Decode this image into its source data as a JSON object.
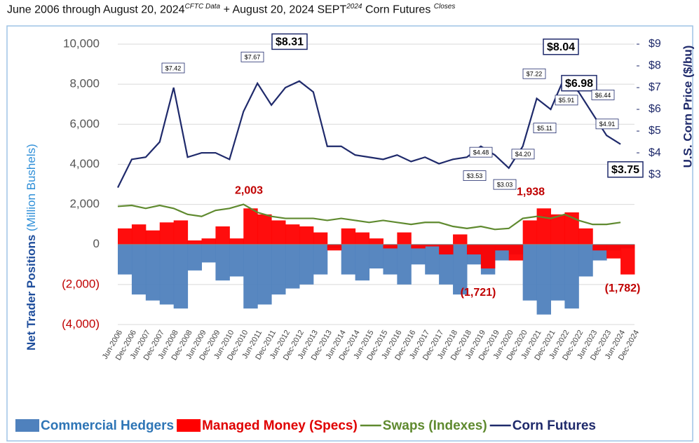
{
  "chart_data": {
    "type": "combo",
    "title_parts": [
      "June 2006 through August 20, 2024",
      "CFTC Data",
      "+ August 20, 2024 SEPT",
      "2024",
      "Corn Futures",
      "Closes"
    ],
    "y_label": "Net Trader Positions",
    "y_label_unit": "(Million Bushels)",
    "y2_label": "U.S. Corn Price ($/bu)",
    "categories": [
      "Jun-2006",
      "Dec-2006",
      "Jun-2007",
      "Dec-2007",
      "Jun-2008",
      "Dec-2008",
      "Jun-2009",
      "Dec-2009",
      "Jun-2010",
      "Dec-2010",
      "Jun-2011",
      "Dec-2011",
      "Jun-2012",
      "Dec-2012",
      "Jun-2013",
      "Dec-2013",
      "Jun-2014",
      "Dec-2014",
      "Jun-2015",
      "Dec-2015",
      "Jun-2016",
      "Dec-2016",
      "Jun-2017",
      "Dec-2017",
      "Jun-2018",
      "Dec-2018",
      "Jun-2019",
      "Dec-2019",
      "Jun-2020",
      "Dec-2020",
      "Jun-2021",
      "Dec-2021",
      "Jun-2022",
      "Dec-2022",
      "Jun-2023",
      "Dec-2023",
      "Jun-2024",
      "Dec-2024"
    ],
    "ylim": [
      -4000,
      10000
    ],
    "yticks": [
      {
        "value": 10000,
        "label": "10,000"
      },
      {
        "value": 8000,
        "label": "8,000"
      },
      {
        "value": 6000,
        "label": "6,000"
      },
      {
        "value": 4000,
        "label": "4,000"
      },
      {
        "value": 2000,
        "label": "2,000"
      },
      0,
      {
        "value": -2000,
        "label": "(2,000)"
      },
      {
        "value": -4000,
        "label": "(4,000)"
      }
    ],
    "y2lim": [
      -3.9,
      9
    ],
    "y2ticks": [
      {
        "value": 9,
        "label": "$9"
      },
      {
        "value": 8,
        "label": "$8"
      },
      {
        "value": 7,
        "label": "$7"
      },
      {
        "value": 6,
        "label": "$6"
      },
      {
        "value": 5,
        "label": "$5"
      },
      {
        "value": 4,
        "label": "$4"
      },
      {
        "value": 3,
        "label": "$3"
      }
    ],
    "grid": true,
    "series": [
      {
        "name": "Commercial Hedgers",
        "kind": "bar",
        "color": "#4f81bd",
        "values": [
          -1500,
          -2500,
          -2800,
          -3000,
          -3200,
          -1300,
          -900,
          -1800,
          -1600,
          -3200,
          -3000,
          -2500,
          -2200,
          -2000,
          -1500,
          -200,
          -1500,
          -1800,
          -1200,
          -1500,
          -2000,
          -1000,
          -1500,
          -2000,
          -2500,
          -1000,
          -1500,
          -800,
          -500,
          -2800,
          -3500,
          -2800,
          -3200,
          -1600,
          -800,
          -300,
          -200,
          null
        ]
      },
      {
        "name": "Managed Money (Specs)",
        "kind": "bar",
        "color": "#ff0000",
        "values": [
          800,
          1000,
          700,
          1100,
          1200,
          200,
          300,
          900,
          300,
          1800,
          1500,
          1200,
          1000,
          900,
          600,
          -300,
          800,
          600,
          300,
          -200,
          600,
          -200,
          -100,
          -500,
          500,
          -500,
          -1200,
          -300,
          -800,
          1200,
          1800,
          1500,
          1600,
          800,
          -300,
          -700,
          -1500,
          null
        ]
      },
      {
        "name": "Swaps (Indexes)",
        "kind": "line",
        "color": "#5f8a2f",
        "values": [
          1900,
          1950,
          1800,
          1950,
          1800,
          1500,
          1400,
          1700,
          1800,
          2000,
          1600,
          1400,
          1300,
          1300,
          1300,
          1200,
          1300,
          1200,
          1100,
          1200,
          1100,
          1000,
          1100,
          1100,
          900,
          800,
          900,
          750,
          800,
          1300,
          1400,
          1300,
          1500,
          1200,
          1000,
          1000,
          1100,
          null
        ]
      },
      {
        "name": "Corn Futures",
        "kind": "line",
        "axis": "y2",
        "color": "#1f2a6b",
        "values": [
          2.4,
          3.7,
          3.8,
          4.5,
          7.0,
          3.8,
          4.0,
          4.0,
          3.7,
          5.9,
          7.2,
          6.2,
          7.0,
          7.3,
          6.8,
          4.3,
          4.3,
          3.9,
          3.8,
          3.7,
          3.9,
          3.6,
          3.8,
          3.5,
          3.7,
          3.8,
          4.3,
          3.9,
          3.3,
          4.3,
          6.5,
          6.0,
          7.5,
          6.8,
          5.8,
          4.8,
          4.4,
          null
        ]
      }
    ],
    "price_labels": [
      {
        "text": "$7.42",
        "value": 7.42
      },
      {
        "text": "$7.67",
        "value": 7.67
      },
      {
        "text": "$8.31",
        "value": 8.31
      },
      {
        "text": "$8.04",
        "value": 8.04
      },
      {
        "text": "$7.22",
        "value": 7.22
      },
      {
        "text": "$6.98",
        "value": 6.98
      },
      {
        "text": "$6.44",
        "value": 6.44
      },
      {
        "text": "$4.91",
        "value": 4.91
      },
      {
        "text": "$3.75",
        "value": 3.75
      },
      {
        "text": "$4.48",
        "value": 4.48
      },
      {
        "text": "$3.53",
        "value": 3.53
      },
      {
        "text": "$3.03",
        "value": 3.03
      },
      {
        "text": "$4.20",
        "value": 4.2
      },
      {
        "text": "$5.11",
        "value": 5.11
      },
      {
        "text": "$5.91",
        "value": 5.91
      }
    ],
    "position_labels": [
      {
        "text": "2,003",
        "value": 2003
      },
      {
        "text": "1,938",
        "value": 1938
      },
      {
        "text": "(1,721)",
        "value": -1721
      },
      {
        "text": "(1,782)",
        "value": -1782
      }
    ]
  }
}
